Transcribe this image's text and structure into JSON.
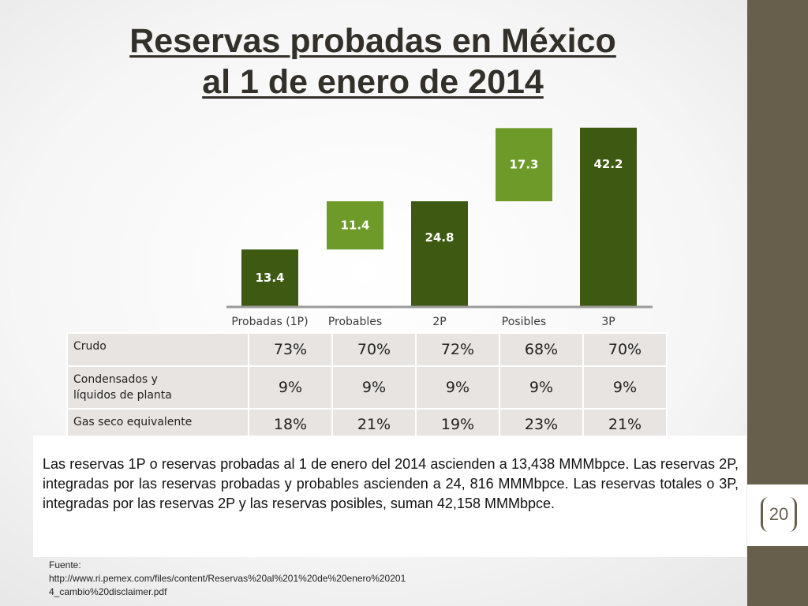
{
  "title": {
    "line1": "Reservas probadas en México",
    "line2": "al 1 de enero de 2014"
  },
  "chart_data": {
    "type": "bar",
    "subtype": "waterfall",
    "categories": [
      "Probadas (1P)",
      "Probables",
      "2P",
      "Posibles",
      "3P"
    ],
    "values": [
      13.4,
      11.4,
      24.8,
      17.3,
      42.2
    ],
    "bar_kind": [
      "total",
      "increment",
      "total",
      "increment",
      "total"
    ],
    "colors": {
      "total": "#3e5a12",
      "increment": "#6e9a29"
    },
    "ylim": [
      0,
      42.2
    ],
    "title": "",
    "xlabel": "",
    "ylabel": "",
    "grid": false,
    "legend": "none"
  },
  "composition_table": {
    "rows": [
      {
        "label": [
          "Crudo"
        ],
        "values": [
          "73%",
          "70%",
          "72%",
          "68%",
          "70%"
        ]
      },
      {
        "label": [
          "Condensados y",
          "líquidos de planta"
        ],
        "values": [
          "9%",
          "9%",
          "9%",
          "9%",
          "9%"
        ]
      },
      {
        "label": [
          "Gas seco equivalente"
        ],
        "values": [
          "18%",
          "21%",
          "19%",
          "23%",
          "21%"
        ]
      }
    ]
  },
  "summary": "Las reservas 1P o reservas probadas al 1 de enero del 2014 ascienden a 13,438 MMMbpce. Las reservas 2P, integradas por las reservas probadas y probables ascienden a 24, 816 MMMbpce. Las reservas totales o 3P, integradas por las reservas 2P y las reservas posibles, suman 42,158 MMMbpce.",
  "source": {
    "label": "Fuente:",
    "url_line1": "http://www.ri.pemex.com/files/content/Reservas%20al%201%20de%20enero%20201",
    "url_line2": "4_cambio%20disclaimer.pdf"
  },
  "slide_number": "20",
  "colors": {
    "sidebar": "#675e4c",
    "title": "#33302a"
  }
}
